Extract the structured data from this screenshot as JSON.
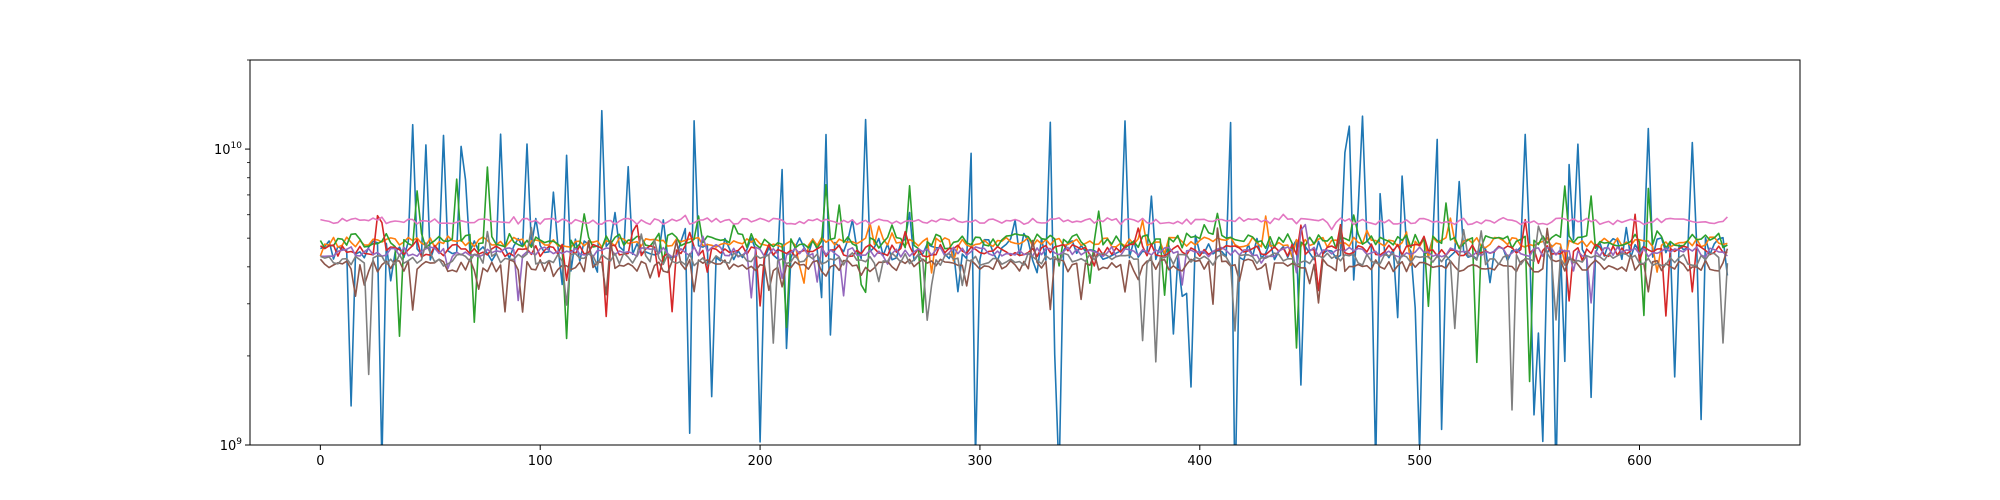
{
  "chart_data": {
    "type": "line",
    "title": "",
    "xlabel": "",
    "ylabel": "",
    "yscale": "log",
    "xlim": [
      -32,
      673
    ],
    "ylim": [
      1000000000,
      20000000000
    ],
    "grid": false,
    "legend": "none",
    "x_ticks": [
      {
        "value": 0,
        "label": "0"
      },
      {
        "value": 100,
        "label": "100"
      },
      {
        "value": 200,
        "label": "200"
      },
      {
        "value": 300,
        "label": "300"
      },
      {
        "value": 400,
        "label": "400"
      },
      {
        "value": 500,
        "label": "500"
      },
      {
        "value": 600,
        "label": "600"
      }
    ],
    "y_ticks": [
      {
        "value": 1000000000,
        "base": "10",
        "exp": "9"
      },
      {
        "value": 10000000000,
        "base": "10",
        "exp": "10"
      }
    ],
    "x": {
      "start": 0,
      "end": 640,
      "step": 2
    },
    "series": [
      {
        "color": "#1f77b4",
        "base": 4600000000.0,
        "jitter": 0.09,
        "spike_prob": 0.14,
        "spike_max": 13500000000,
        "dip_prob": 0.13,
        "dip_min": 650000000,
        "seed": 11
      },
      {
        "color": "#ff7f0e",
        "base": 4850000000.0,
        "jitter": 0.04,
        "spike_prob": 0.03,
        "spike_max": 6000000000,
        "dip_prob": 0.04,
        "dip_min": 3500000000,
        "seed": 23
      },
      {
        "color": "#2ca02c",
        "base": 4900000000.0,
        "jitter": 0.06,
        "spike_prob": 0.09,
        "spike_max": 9000000000,
        "dip_prob": 0.05,
        "dip_min": 1600000000,
        "seed": 37
      },
      {
        "color": "#d62728",
        "base": 4550000000.0,
        "jitter": 0.05,
        "spike_prob": 0.04,
        "spike_max": 6200000000,
        "dip_prob": 0.07,
        "dip_min": 2500000000,
        "seed": 41
      },
      {
        "color": "#9467bd",
        "base": 4500000000.0,
        "jitter": 0.04,
        "spike_prob": 0.03,
        "spike_max": 5800000000,
        "dip_prob": 0.04,
        "dip_min": 3000000000,
        "seed": 53
      },
      {
        "color": "#8c564b",
        "base": 4050000000.0,
        "jitter": 0.05,
        "spike_prob": 0.04,
        "spike_max": 5500000000,
        "dip_prob": 0.07,
        "dip_min": 2800000000,
        "seed": 67
      },
      {
        "color": "#e377c2",
        "base": 5700000000.0,
        "jitter": 0.025,
        "spike_prob": 0.05,
        "spike_max": 6200000000,
        "dip_prob": 0.01,
        "dip_min": 5200000000,
        "seed": 71
      },
      {
        "color": "#7f7f7f",
        "base": 4250000000.0,
        "jitter": 0.05,
        "spike_prob": 0.04,
        "spike_max": 5600000000,
        "dip_prob": 0.06,
        "dip_min": 1100000000,
        "seed": 83
      }
    ]
  }
}
